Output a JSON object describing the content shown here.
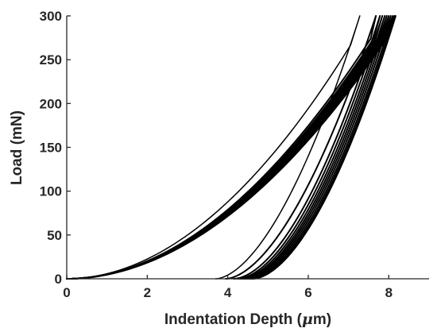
{
  "chart_data": {
    "type": "line",
    "title": "",
    "xlabel": "Indentation Depth (",
    "xlabel_symbol": "μ",
    "xlabel_unit": "m)",
    "ylabel": "Load (mN)",
    "xlim": [
      0,
      9
    ],
    "ylim": [
      0,
      300
    ],
    "xticks": [
      0,
      2,
      4,
      6,
      8
    ],
    "yticks": [
      0,
      50,
      100,
      150,
      200,
      250,
      300
    ],
    "grid": false,
    "legend": "none",
    "line_color": "#000000",
    "series": [
      {
        "loading": {
          "k": 5.8,
          "m": 1.96
        },
        "hold": [
          7.05,
          7.28
        ],
        "unloading": {
          "hf": 3.7,
          "m": 1.72
        }
      },
      {
        "loading": {
          "k": 5.21,
          "m": 1.96
        },
        "hold": [
          7.55,
          7.68
        ],
        "unloading": {
          "hf": 3.95,
          "m": 1.72
        }
      },
      {
        "loading": {
          "k": 5.12,
          "m": 1.96
        },
        "hold": [
          7.63,
          7.78
        ],
        "unloading": {
          "hf": 4.15,
          "m": 1.76
        }
      },
      {
        "loading": {
          "k": 5.06,
          "m": 1.96
        },
        "hold": [
          7.68,
          7.84
        ],
        "unloading": {
          "hf": 4.25,
          "m": 1.76
        }
      },
      {
        "loading": {
          "k": 5.0,
          "m": 1.96
        },
        "hold": [
          7.72,
          7.9
        ],
        "unloading": {
          "hf": 4.32,
          "m": 1.76
        }
      },
      {
        "loading": {
          "k": 4.95,
          "m": 1.96
        },
        "hold": [
          7.76,
          7.95
        ],
        "unloading": {
          "hf": 4.38,
          "m": 1.76
        }
      },
      {
        "loading": {
          "k": 4.9,
          "m": 1.96
        },
        "hold": [
          7.8,
          8.0
        ],
        "unloading": {
          "hf": 4.43,
          "m": 1.76
        }
      },
      {
        "loading": {
          "k": 4.85,
          "m": 1.96
        },
        "hold": [
          7.83,
          8.05
        ],
        "unloading": {
          "hf": 4.48,
          "m": 1.76
        }
      },
      {
        "loading": {
          "k": 4.8,
          "m": 1.96
        },
        "hold": [
          7.86,
          8.1
        ],
        "unloading": {
          "hf": 4.53,
          "m": 1.76
        }
      },
      {
        "loading": {
          "k": 4.76,
          "m": 1.96
        },
        "hold": [
          7.88,
          8.14
        ],
        "unloading": {
          "hf": 4.58,
          "m": 1.76
        }
      },
      {
        "loading": {
          "k": 4.72,
          "m": 1.96
        },
        "hold": [
          7.9,
          8.17
        ],
        "unloading": {
          "hf": 4.62,
          "m": 1.76
        }
      }
    ]
  }
}
